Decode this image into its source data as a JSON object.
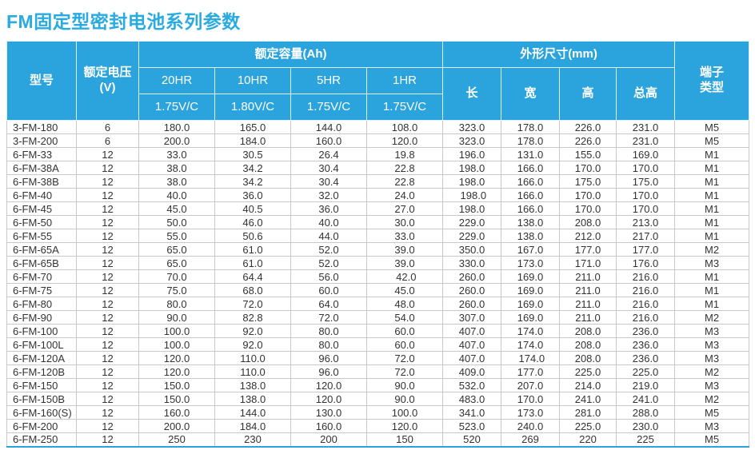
{
  "colors": {
    "accent_blue": "#2ba3dc",
    "title_blue": "#29abe2",
    "header_text": "#ffffff",
    "body_text": "#333333",
    "grid_line": "#c9c9c9"
  },
  "page": {
    "title": "FM固定型密封电池系列参数"
  },
  "table": {
    "header": {
      "model": "型号",
      "voltage_line1": "额定电压",
      "voltage_line2": "(V)",
      "capacity_group": "额定容量(Ah)",
      "capacity_cols": [
        {
          "hr": "20HR",
          "vc": "1.75V/C"
        },
        {
          "hr": "10HR",
          "vc": "1.80V/C"
        },
        {
          "hr": "5HR",
          "vc": "1.75V/C"
        },
        {
          "hr": "1HR",
          "vc": "1.75V/C"
        }
      ],
      "dimension_group": "外形尺寸(mm)",
      "dimension_cols": [
        "长",
        "宽",
        "高",
        "总高"
      ],
      "terminal_line1": "端子",
      "terminal_line2": "类型"
    },
    "column_keys": [
      "model",
      "voltage",
      "cap-20hr",
      "cap-10hr",
      "cap-5hr",
      "cap-1hr",
      "length",
      "width",
      "height",
      "total-height",
      "terminal-type"
    ],
    "rows": [
      [
        "3-FM-180",
        "6",
        "180.0",
        "165.0",
        "144.0",
        "108.0",
        "323.0",
        "178.0",
        "226.0",
        "231.0",
        "M5"
      ],
      [
        "3-FM-200",
        "6",
        "200.0",
        "184.0",
        "160.0",
        "120.0",
        "323.0",
        "178.0",
        "226.0",
        "231.0",
        "M5"
      ],
      [
        "6-FM-33",
        "12",
        "33.0",
        "30.5",
        "26.4",
        "19.8",
        "196.0",
        "131.0",
        "155.0",
        "169.0",
        "M1"
      ],
      [
        "6-FM-38A",
        "12",
        "38.0",
        "34.2",
        "30.4",
        "22.8",
        "198.0",
        "166.0",
        "170.0",
        "170.0",
        "M1"
      ],
      [
        "6-FM-38B",
        "12",
        "38.0",
        "34.2",
        "30.4",
        "22.8",
        "198.0",
        "166.0",
        "175.0",
        "175.0",
        "M1"
      ],
      [
        "6-FM-40",
        "12",
        "40.0",
        "36.0",
        "32.0",
        "24.0",
        " 198.0",
        "166.0",
        "170.0",
        "170.0",
        "M1"
      ],
      [
        "6-FM-45",
        "12",
        "45.0",
        "40.5",
        "36.0",
        "27.0",
        "198.0",
        "166.0",
        "170.0",
        "170.0",
        "M1"
      ],
      [
        "6-FM-50",
        "12",
        "50.0",
        "46.0",
        "40.0",
        "30.0",
        "229.0",
        "138.0",
        "208.0",
        "213.0",
        "M1"
      ],
      [
        "6-FM-55",
        "12",
        "55.0",
        "50.6",
        "44.0",
        "33.0",
        "229.0",
        "138.0",
        "212.0",
        "217.0",
        "M1"
      ],
      [
        "6-FM-65A",
        "12",
        "65.0",
        "61.0",
        "52.0",
        "39.0",
        "350.0",
        "167.0",
        "177.0",
        "177.0",
        "M2"
      ],
      [
        "6-FM-65B",
        "12",
        "65.0",
        "61.0",
        "52.0",
        "39.0",
        "330.0",
        "173.0",
        "171.0",
        "176.0",
        "M3"
      ],
      [
        "6-FM-70",
        "12",
        "70.0",
        "64.4",
        "56.0",
        " 42.0",
        "260.0",
        "169.0",
        "211.0",
        "216.0",
        "M1"
      ],
      [
        "6-FM-75",
        "12",
        "75.0",
        "68.0",
        "60.0",
        "45.0",
        "260.0",
        "169.0",
        "211.0",
        "216.0",
        "M1"
      ],
      [
        "6-FM-80",
        "12",
        "80.0",
        "72.0",
        "64.0",
        "48.0",
        "260.0",
        "169.0",
        "211.0",
        "216.0",
        "M1"
      ],
      [
        "6-FM-90",
        "12",
        "90.0",
        "82.8",
        "72.0",
        "54.0",
        "307.0",
        "169.0",
        "211.0",
        "216.0",
        "M2"
      ],
      [
        "6-FM-100",
        "12",
        "100.0",
        "92.0",
        "80.0",
        "60.0",
        "407.0",
        "174.0",
        "208.0",
        "236.0",
        "M3"
      ],
      [
        "6-FM-100L",
        "12",
        "100.0",
        "92.0",
        "80.0",
        "60.0",
        "407.0",
        "174.0",
        "208.0",
        "236.0",
        "M3"
      ],
      [
        "6-FM-120A",
        "12",
        "120.0",
        "110.0",
        "96.0",
        "72.0",
        "407.0",
        " 174.0",
        "208.0",
        "236.0",
        "M3"
      ],
      [
        "6-FM-120B",
        "12",
        "120.0",
        "110.0",
        "96.0",
        "72.0",
        "409.0",
        "177.0",
        "225.0",
        "225.0",
        "M2"
      ],
      [
        "6-FM-150",
        "12",
        "150.0",
        "138.0",
        "120.0",
        "90.0",
        "532.0",
        "207.0",
        "214.0",
        "219.0",
        "M3"
      ],
      [
        "6-FM-150B",
        "12",
        "150.0",
        "138.0",
        "120.0",
        "90.0",
        "483.0",
        "170.0",
        "241.0",
        "241.0",
        "M2"
      ],
      [
        "6-FM-160(S)",
        "12",
        "160.0",
        "144.0",
        "130.0",
        "100.0",
        "341.0",
        "173.0",
        "281.0",
        "288.0",
        "M5"
      ],
      [
        "6-FM-200",
        "12",
        "200.0",
        "184.0",
        "160.0",
        "120.0",
        "523.0",
        "240.0",
        "225.0",
        "230.0",
        "M3"
      ],
      [
        "6-FM-250",
        "12",
        "250",
        "230",
        "200",
        "150",
        "520",
        "269",
        "220",
        "225",
        "M5"
      ]
    ]
  }
}
